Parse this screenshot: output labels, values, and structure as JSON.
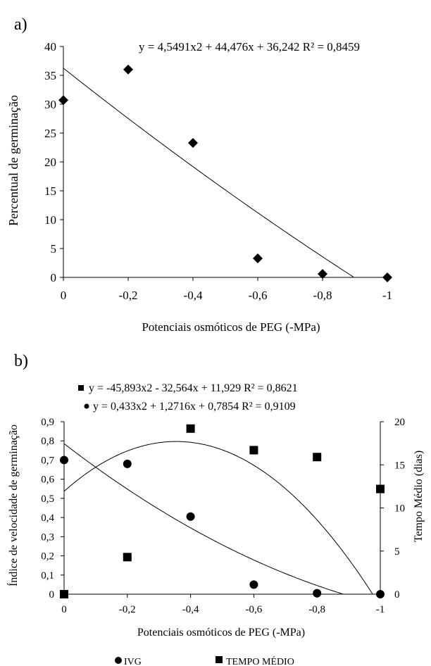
{
  "chart_data": [
    {
      "panel_label": "a)",
      "type": "scatter",
      "xlabel": "Potenciais osmóticos de PEG (-MPa)",
      "ylabel": "Percentual de germinação",
      "xlim": [
        0,
        -1
      ],
      "ylim": [
        0,
        40
      ],
      "x_ticks": [
        "0",
        "-0,2",
        "-0,4",
        "-0,6",
        "-0,8",
        "-1"
      ],
      "y_ticks": [
        "0",
        "5",
        "10",
        "15",
        "20",
        "25",
        "30",
        "35",
        "40"
      ],
      "equation": "y = 4,5491x2 + 44,476x + 36,242 R² = 0,8459",
      "grid": false,
      "series": [
        {
          "marker": "diamond",
          "x": [
            0,
            -0.2,
            -0.4,
            -0.6,
            -0.8,
            -1.0
          ],
          "y": [
            30.7,
            36.0,
            23.3,
            3.3,
            0.6,
            0.0
          ]
        }
      ],
      "trendline": {
        "coefficients": [
          4.5491,
          44.476,
          36.242
        ]
      }
    },
    {
      "panel_label": "b)",
      "type": "scatter",
      "xlabel": "Potenciais osmóticos de PEG (-MPa)",
      "ylabel": "Índice de velocidade de germinação",
      "y2label": "Tempo Médio (dias)",
      "xlim": [
        0,
        -1
      ],
      "ylim": [
        0,
        0.9
      ],
      "y2lim": [
        0,
        20
      ],
      "x_ticks": [
        "0",
        "-0,2",
        "-0,4",
        "-0,6",
        "-0,8",
        "-1"
      ],
      "y_ticks": [
        "0",
        "0,1",
        "0,2",
        "0,3",
        "0,4",
        "0,5",
        "0,6",
        "0,7",
        "0,8",
        "0,9"
      ],
      "y2_ticks": [
        "0",
        "5",
        "10",
        "15",
        "20"
      ],
      "grid": false,
      "legend_position": "bottom",
      "series": [
        {
          "name": "IVG",
          "marker": "circle",
          "axis": "left",
          "equation": "y = 0,433x2 + 1,2716x + 0,7854 R² = 0,9109",
          "x": [
            0,
            -0.2,
            -0.4,
            -0.6,
            -0.8,
            -1.0
          ],
          "y": [
            0.7,
            0.68,
            0.405,
            0.05,
            0.005,
            0.0
          ],
          "trendline": {
            "coefficients": [
              0.433,
              1.2716,
              0.7854
            ]
          }
        },
        {
          "name": "TEMPO MÉDIO",
          "marker": "square",
          "axis": "right",
          "equation": "y = -45,893x2 - 32,564x + 11,929 R² = 0,8621",
          "x": [
            0,
            -0.2,
            -0.4,
            -0.6,
            -0.8,
            -1.0
          ],
          "y": [
            0.0,
            4.3,
            19.2,
            16.7,
            15.9,
            12.2
          ],
          "trendline": {
            "coefficients": [
              -45.893,
              -32.564,
              11.929
            ]
          }
        }
      ]
    }
  ]
}
